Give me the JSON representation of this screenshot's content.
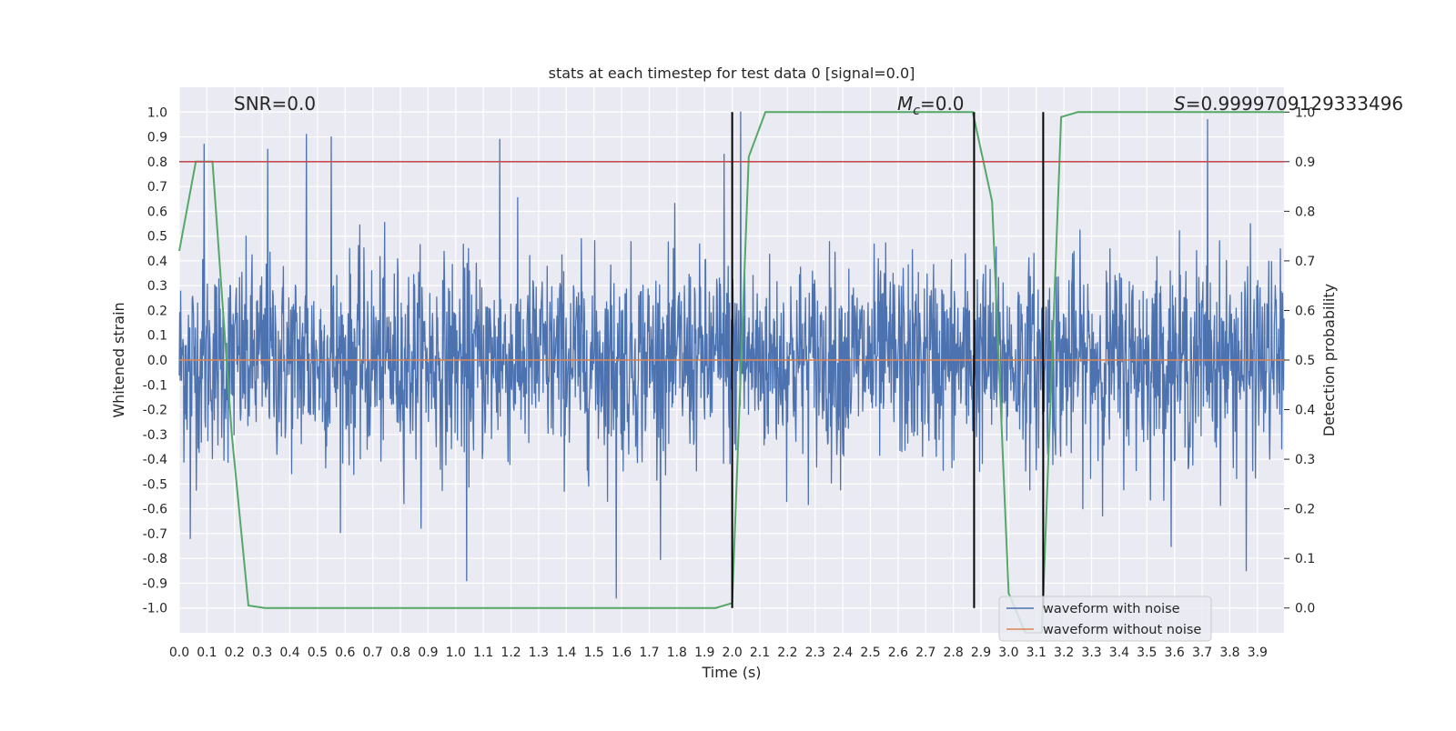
{
  "chart_data": {
    "type": "line",
    "title": "stats at each timestep for test data 0 [signal=0.0]",
    "xlabel": "Time (s)",
    "ylabel": "Whitened strain",
    "y2label": "Detection probability",
    "xlim": [
      0.0,
      3.996
    ],
    "ylim": [
      -1.1,
      1.1
    ],
    "y2lim": [
      -0.05,
      1.05
    ],
    "x_ticks": [
      "0.0",
      "0.1",
      "0.2",
      "0.3",
      "0.4",
      "0.5",
      "0.6",
      "0.7",
      "0.8",
      "0.9",
      "1.0",
      "1.1",
      "1.2",
      "1.3",
      "1.4",
      "1.5",
      "1.6",
      "1.7",
      "1.8",
      "1.9",
      "2.0",
      "2.1",
      "2.2",
      "2.3",
      "2.4",
      "2.5",
      "2.6",
      "2.7",
      "2.8",
      "2.9",
      "3.0",
      "3.1",
      "3.2",
      "3.3",
      "3.4",
      "3.5",
      "3.6",
      "3.7",
      "3.8",
      "3.9"
    ],
    "y_ticks": [
      "1.0",
      "0.9",
      "0.8",
      "0.7",
      "0.6",
      "0.5",
      "0.4",
      "0.3",
      "0.2",
      "0.1",
      "0.0",
      "-0.1",
      "-0.2",
      "-0.3",
      "-0.4",
      "-0.5",
      "-0.6",
      "-0.7",
      "-0.8",
      "-0.9",
      "-1.0"
    ],
    "y2_ticks": [
      "1.0",
      "0.9",
      "0.8",
      "0.7",
      "0.6",
      "0.5",
      "0.4",
      "0.3",
      "0.2",
      "0.1",
      "0.0"
    ],
    "grid": true,
    "legend_position": "lower-right",
    "series": [
      {
        "name": "waveform with noise",
        "color": "#4c72b0",
        "description_envelope": "dense noise, mostly within about ±0.4, peaks up to about +1.0 and -0.95",
        "peaks": [
          {
            "x": 0.04,
            "y": -0.72
          },
          {
            "x": 0.09,
            "y": 0.87
          },
          {
            "x": 0.32,
            "y": 0.85
          },
          {
            "x": 0.46,
            "y": 0.91
          },
          {
            "x": 0.55,
            "y": 0.9
          },
          {
            "x": 1.16,
            "y": 0.89
          },
          {
            "x": 1.04,
            "y": -0.89
          },
          {
            "x": 1.58,
            "y": -0.96
          },
          {
            "x": 1.97,
            "y": 0.83
          },
          {
            "x": 2.03,
            "y": 1.0
          },
          {
            "x": 3.72,
            "y": 0.97
          },
          {
            "x": 3.86,
            "y": -0.85
          }
        ]
      },
      {
        "name": "waveform without noise",
        "color": "#dd8452",
        "x": [
          0.0,
          3.996
        ],
        "y": [
          0.0,
          0.0
        ]
      },
      {
        "name": "detection probability",
        "axis": "right",
        "color": "#55a868",
        "x": [
          0.0,
          0.06,
          0.12,
          0.19,
          0.25,
          0.31,
          0.38,
          0.5,
          0.75,
          1.0,
          1.25,
          1.5,
          1.75,
          1.94,
          2.0,
          2.06,
          2.12,
          2.25,
          2.5,
          2.75,
          2.87,
          2.94,
          3.0,
          3.06,
          3.12,
          3.19,
          3.25,
          3.5,
          3.75,
          3.996
        ],
        "y": [
          0.72,
          0.9,
          0.9,
          0.35,
          0.005,
          0.0,
          0.0,
          0.0,
          0.0,
          0.0,
          0.0,
          0.0,
          0.0,
          0.0,
          0.01,
          0.91,
          1.0,
          1.0,
          1.0,
          1.0,
          1.0,
          0.82,
          0.03,
          -0.05,
          -0.05,
          0.99,
          1.0,
          1.0,
          1.0,
          1.0
        ]
      }
    ],
    "hlines": [
      {
        "axis": "right",
        "y": 0.9,
        "color": "#c44e52"
      }
    ],
    "vlines": [
      {
        "x": 2.0,
        "color": "#000000"
      },
      {
        "x": 2.875,
        "color": "#000000"
      },
      {
        "x": 3.125,
        "color": "#000000"
      }
    ],
    "annotations": {
      "snr": "SNR=0.0",
      "mc_symbol": "M",
      "mc_subscript": "c",
      "mc_value": "=0.0",
      "s_symbol": "S",
      "s_value": "=0.9999709129333496"
    },
    "legend": [
      "waveform with noise",
      "waveform without noise"
    ]
  }
}
